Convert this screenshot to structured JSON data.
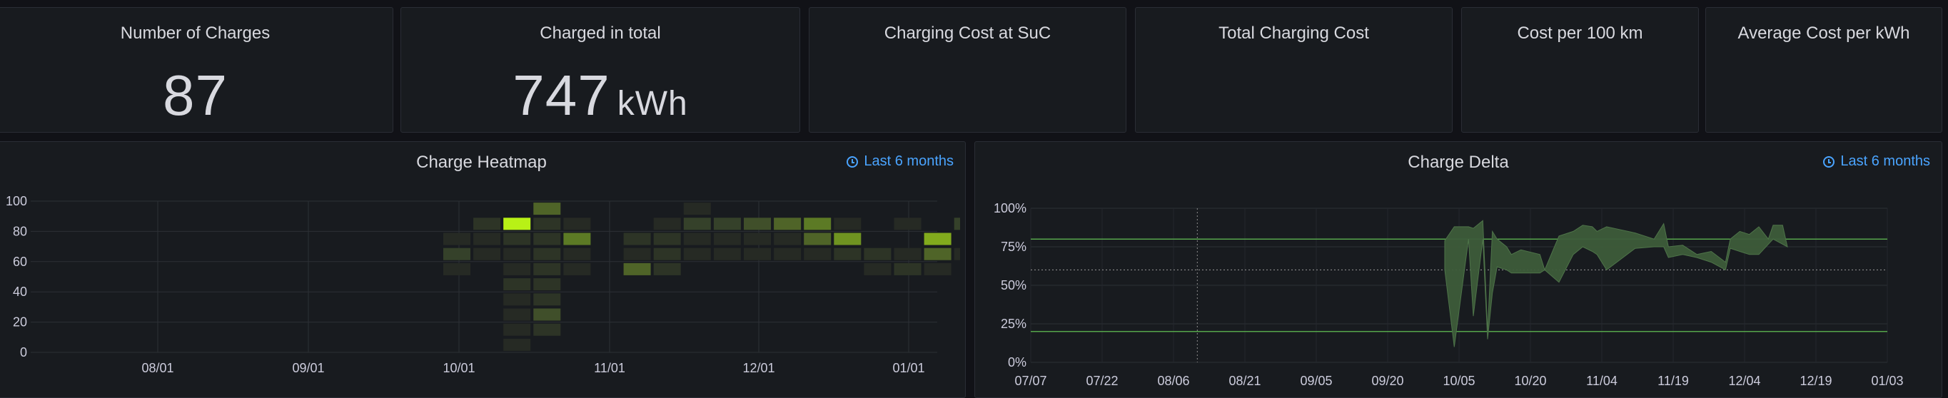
{
  "stats": [
    {
      "title": "Number of Charges",
      "value": "87",
      "unit": ""
    },
    {
      "title": "Charged in total",
      "value": "747",
      "unit": "kWh"
    },
    {
      "title": "Charging Cost at SuC",
      "value": "",
      "unit": ""
    },
    {
      "title": "Total Charging Cost",
      "value": "",
      "unit": ""
    },
    {
      "title": "Cost per 100 km",
      "value": "",
      "unit": ""
    },
    {
      "title": "Average Cost per kWh",
      "value": "",
      "unit": ""
    }
  ],
  "heatmap_panel": {
    "title": "Charge Heatmap",
    "time_range": "Last 6 months"
  },
  "delta_panel": {
    "title": "Charge Delta",
    "time_range": "Last 6 months"
  },
  "colors": {
    "background": "#111217",
    "panel": "#181b1f",
    "accent": "#4aa4ff",
    "heat_max": "#b8f116",
    "delta_fill": "#3d5c3a",
    "threshold": "#56a64b"
  },
  "chart_data": [
    {
      "type": "heatmap",
      "title": "Charge Heatmap",
      "x_ticks": [
        "08/01",
        "09/01",
        "10/01",
        "11/01",
        "12/01",
        "01/01"
      ],
      "y_ticks": [
        "100",
        "80",
        "60",
        "40",
        "20",
        "0"
      ],
      "ylim": [
        0,
        100
      ],
      "bucket_size": 10,
      "cells": [
        [
          0,
          70,
          1
        ],
        [
          0,
          60,
          3
        ],
        [
          0,
          50,
          1
        ],
        [
          1,
          80,
          2
        ],
        [
          1,
          70,
          1
        ],
        [
          1,
          60,
          1
        ],
        [
          2,
          80,
          10
        ],
        [
          2,
          70,
          2
        ],
        [
          2,
          60,
          1
        ],
        [
          2,
          50,
          1
        ],
        [
          2,
          40,
          2
        ],
        [
          2,
          30,
          1
        ],
        [
          2,
          20,
          1
        ],
        [
          2,
          10,
          1
        ],
        [
          2,
          0,
          1
        ],
        [
          3,
          90,
          5
        ],
        [
          3,
          80,
          2
        ],
        [
          3,
          70,
          2
        ],
        [
          3,
          60,
          2
        ],
        [
          3,
          50,
          2
        ],
        [
          3,
          40,
          2
        ],
        [
          3,
          30,
          2
        ],
        [
          3,
          20,
          4
        ],
        [
          3,
          10,
          2
        ],
        [
          4,
          80,
          1
        ],
        [
          4,
          70,
          6
        ],
        [
          4,
          60,
          1
        ],
        [
          4,
          50,
          1
        ],
        [
          6,
          70,
          2
        ],
        [
          6,
          60,
          1
        ],
        [
          6,
          50,
          5
        ],
        [
          7,
          80,
          1
        ],
        [
          7,
          70,
          2
        ],
        [
          7,
          60,
          2
        ],
        [
          7,
          50,
          2
        ],
        [
          8,
          90,
          1
        ],
        [
          8,
          80,
          3
        ],
        [
          8,
          70,
          1
        ],
        [
          8,
          60,
          1
        ],
        [
          9,
          80,
          3
        ],
        [
          9,
          70,
          1
        ],
        [
          9,
          60,
          1
        ],
        [
          10,
          80,
          4
        ],
        [
          10,
          70,
          1
        ],
        [
          10,
          60,
          1
        ],
        [
          11,
          80,
          5
        ],
        [
          11,
          70,
          1
        ],
        [
          11,
          60,
          1
        ],
        [
          12,
          80,
          6
        ],
        [
          12,
          70,
          5
        ],
        [
          12,
          60,
          1
        ],
        [
          13,
          80,
          1
        ],
        [
          13,
          70,
          7
        ],
        [
          13,
          60,
          2
        ],
        [
          14,
          60,
          2
        ],
        [
          14,
          50,
          1
        ],
        [
          15,
          80,
          1
        ],
        [
          15,
          60,
          1
        ],
        [
          15,
          50,
          2
        ],
        [
          16,
          70,
          8
        ],
        [
          16,
          60,
          5
        ],
        [
          16,
          50,
          1
        ],
        [
          17,
          80,
          3
        ],
        [
          17,
          60,
          1
        ],
        [
          18,
          80,
          5
        ],
        [
          18,
          70,
          2
        ],
        [
          18,
          60,
          2
        ],
        [
          19,
          70,
          2
        ]
      ]
    },
    {
      "type": "area",
      "title": "Charge Delta",
      "x_ticks": [
        "07/07",
        "07/22",
        "08/06",
        "08/21",
        "09/05",
        "09/20",
        "10/05",
        "10/20",
        "11/04",
        "11/19",
        "12/04",
        "12/19",
        "01/03"
      ],
      "y_ticks": [
        "100%",
        "75%",
        "50%",
        "25%",
        "0%"
      ],
      "ylim": [
        0,
        100
      ],
      "thresholds": [
        80,
        60,
        20
      ],
      "series": [
        {
          "upper": [
            [
              87,
              79
            ],
            [
              89,
              88
            ],
            [
              92,
              88
            ],
            [
              93,
              87
            ],
            [
              95,
              92
            ],
            [
              96,
              20
            ],
            [
              97,
              85
            ],
            [
              98,
              80
            ],
            [
              100,
              75
            ],
            [
              101,
              70
            ],
            [
              103,
              73
            ],
            [
              107,
              70
            ],
            [
              108,
              60
            ],
            [
              111,
              82
            ],
            [
              114,
              85
            ],
            [
              116,
              89
            ],
            [
              118,
              88
            ],
            [
              119,
              85
            ],
            [
              121,
              88
            ],
            [
              127,
              84
            ],
            [
              131,
              80
            ],
            [
              133,
              90
            ],
            [
              134,
              75
            ],
            [
              137,
              76
            ],
            [
              140,
              70
            ],
            [
              143,
              72
            ],
            [
              146,
              65
            ],
            [
              147,
              80
            ],
            [
              149,
              85
            ],
            [
              151,
              83
            ],
            [
              153,
              88
            ],
            [
              155,
              80
            ],
            [
              156,
              89
            ],
            [
              158,
              89
            ],
            [
              159,
              75
            ]
          ],
          "lower": [
            [
              159,
              75
            ],
            [
              156,
              80
            ],
            [
              153,
              70
            ],
            [
              151,
              70
            ],
            [
              149,
              72
            ],
            [
              147,
              74
            ],
            [
              146,
              60
            ],
            [
              143,
              65
            ],
            [
              140,
              68
            ],
            [
              137,
              70
            ],
            [
              134,
              68
            ],
            [
              133,
              75
            ],
            [
              131,
              75
            ],
            [
              127,
              74
            ],
            [
              121,
              60
            ],
            [
              119,
              70
            ],
            [
              118,
              72
            ],
            [
              116,
              75
            ],
            [
              114,
              70
            ],
            [
              111,
              52
            ],
            [
              108,
              60
            ],
            [
              107,
              58
            ],
            [
              103,
              58
            ],
            [
              101,
              58
            ],
            [
              100,
              60
            ],
            [
              98,
              62
            ],
            [
              97,
              45
            ],
            [
              96,
              15
            ],
            [
              95,
              80
            ],
            [
              93,
              30
            ],
            [
              92,
              80
            ],
            [
              89,
              10
            ],
            [
              87,
              60
            ]
          ]
        }
      ]
    }
  ]
}
